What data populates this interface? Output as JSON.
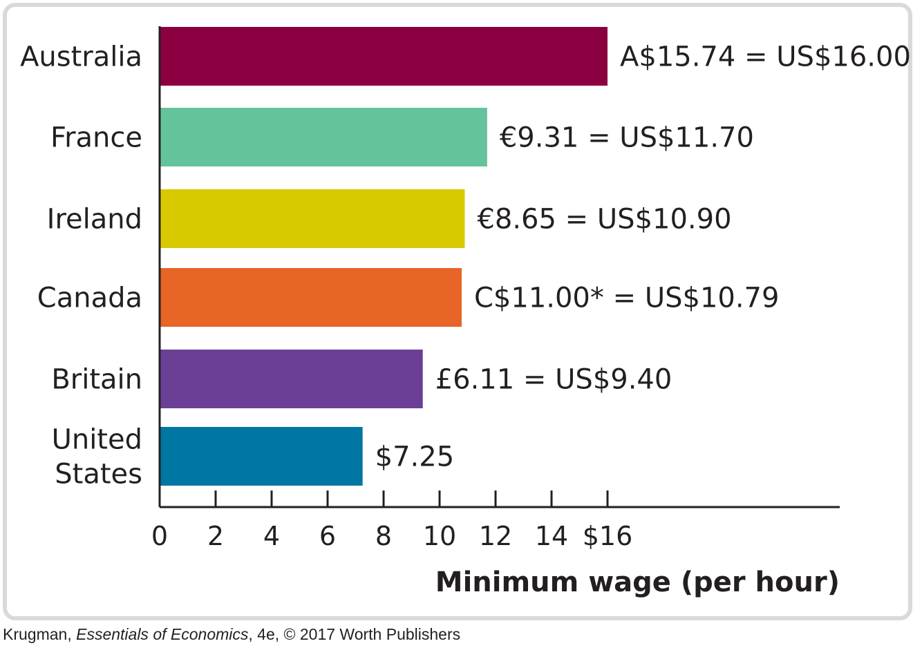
{
  "chart_data": {
    "type": "bar",
    "orientation": "horizontal",
    "categories": [
      [
        "Australia"
      ],
      [
        "France"
      ],
      [
        "Ireland"
      ],
      [
        "Canada"
      ],
      [
        "Britain"
      ],
      [
        "United",
        "States"
      ]
    ],
    "values": [
      16.0,
      11.7,
      10.9,
      10.79,
      9.4,
      7.25
    ],
    "value_labels": [
      "A$15.74 = US$16.00",
      "€9.31 = US$11.70",
      "€8.65 = US$10.90",
      "C$11.00* = US$10.79",
      "£6.11 = US$9.40",
      "$7.25"
    ],
    "colors": [
      "#8b0041",
      "#65c39c",
      "#d9c900",
      "#e66527",
      "#6b3f96",
      "#0076a3"
    ],
    "x_ticks": [
      0,
      2,
      4,
      6,
      8,
      10,
      12,
      14,
      16
    ],
    "x_tick_labels": [
      "0",
      "2",
      "4",
      "6",
      "8",
      "10",
      "12",
      "14",
      "$16"
    ],
    "xlabel": "Minimum wage (per hour)",
    "ylabel": "",
    "xlim": [
      0,
      24.3
    ],
    "grid": false,
    "legend": "none"
  },
  "credit": {
    "author": "Krugman, ",
    "title": "Essentials of Economics",
    "rest": ", 4e, © 2017 Worth Publishers"
  },
  "colors": {
    "frame_border": "#d9d9d9",
    "text": "#231f20",
    "axis": "#231f20"
  }
}
